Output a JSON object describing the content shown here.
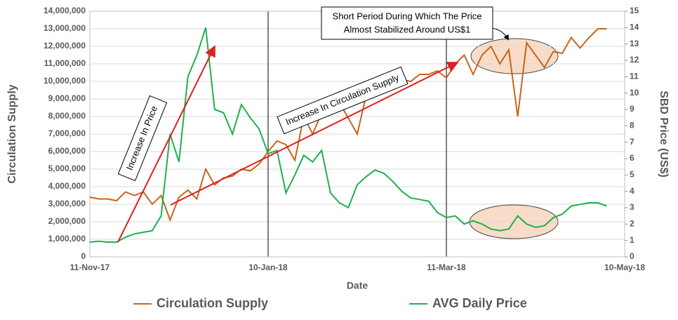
{
  "chart_data": {
    "type": "line",
    "x_label": "Date",
    "y_label": "Circulation Supply",
    "y2_label": "SBD Price (US$)",
    "annotation_top": [
      "Short Period During Which The Price",
      "Almost Stabilized Around US$1"
    ],
    "annotation_price": "Increase In Price",
    "annotation_supply": "Increase In Circulation Supply",
    "x": [
      "2017-11-11",
      "2017-11-14",
      "2017-11-17",
      "2017-11-20",
      "2017-11-23",
      "2017-11-26",
      "2017-11-29",
      "2017-12-02",
      "2017-12-05",
      "2017-12-08",
      "2017-12-11",
      "2017-12-14",
      "2017-12-17",
      "2017-12-20",
      "2017-12-23",
      "2017-12-26",
      "2017-12-29",
      "2018-01-01",
      "2018-01-04",
      "2018-01-07",
      "2018-01-10",
      "2018-01-13",
      "2018-01-16",
      "2018-01-19",
      "2018-01-22",
      "2018-01-25",
      "2018-01-28",
      "2018-01-31",
      "2018-02-03",
      "2018-02-06",
      "2018-02-09",
      "2018-02-12",
      "2018-02-15",
      "2018-02-18",
      "2018-02-21",
      "2018-02-24",
      "2018-02-27",
      "2018-03-02",
      "2018-03-05",
      "2018-03-08",
      "2018-03-11",
      "2018-03-14",
      "2018-03-17",
      "2018-03-20",
      "2018-03-23",
      "2018-03-26",
      "2018-03-29",
      "2018-04-01",
      "2018-04-04",
      "2018-04-07",
      "2018-04-10",
      "2018-04-13",
      "2018-04-16",
      "2018-04-19",
      "2018-04-22",
      "2018-04-25",
      "2018-04-28",
      "2018-05-01",
      "2018-05-04"
    ],
    "series": [
      {
        "name": "Circulation Supply",
        "color": "#c8651b",
        "axis": "y",
        "values": [
          3400000,
          3300000,
          3300000,
          3200000,
          3700000,
          3500000,
          3700000,
          3000000,
          3500000,
          2100000,
          3400000,
          3800000,
          3300000,
          5000000,
          4100000,
          4500000,
          4600000,
          5000000,
          4900000,
          5300000,
          6000000,
          6600000,
          6400000,
          5500000,
          8000000,
          7000000,
          8200000,
          8600000,
          8800000,
          7900000,
          7000000,
          9200000,
          9300000,
          9900000,
          9900000,
          10100000,
          10000000,
          10400000,
          10400000,
          10600000,
          10200000,
          11000000,
          11500000,
          10400000,
          11500000,
          12000000,
          11000000,
          11800000,
          8000000,
          12200000,
          11500000,
          10800000,
          11700000,
          11600000,
          12500000,
          11900000,
          12500000,
          13000000,
          13000000
        ]
      },
      {
        "name": "AVG Daily Price",
        "color": "#1fb04a",
        "axis": "y2",
        "values": [
          0.9,
          0.95,
          0.9,
          0.9,
          1.2,
          1.4,
          1.5,
          1.6,
          2.5,
          7.5,
          5.8,
          11.0,
          12.3,
          14.0,
          9.0,
          8.8,
          7.5,
          9.3,
          8.5,
          7.8,
          6.3,
          6.5,
          3.9,
          5.0,
          6.2,
          5.8,
          6.5,
          3.9,
          3.3,
          3.0,
          4.4,
          4.9,
          5.3,
          5.1,
          4.6,
          4.0,
          3.6,
          3.5,
          3.4,
          2.7,
          2.4,
          2.5,
          2.0,
          2.2,
          2.0,
          1.7,
          1.6,
          1.7,
          2.5,
          2.0,
          1.8,
          1.9,
          2.4,
          2.6,
          3.1,
          3.2,
          3.3,
          3.3,
          3.1
        ]
      }
    ],
    "xlim": [
      "2017-11-11",
      "2018-05-10"
    ],
    "xticks": [
      {
        "value": "2017-11-11",
        "label": "11-Nov-17"
      },
      {
        "value": "2018-01-10",
        "label": "10-Jan-18"
      },
      {
        "value": "2018-03-11",
        "label": "11-Mar-18"
      },
      {
        "value": "2018-05-10",
        "label": "10-May-18"
      }
    ],
    "ylim": [
      0,
      14000000
    ],
    "yticks": [
      0,
      {
        "value": 1000000,
        "label": "1,000,000"
      },
      {
        "value": 2000000,
        "label": "2,000,000"
      },
      {
        "value": 3000000,
        "label": "3,000,000"
      },
      {
        "value": 4000000,
        "label": "4,000,000"
      },
      {
        "value": 5000000,
        "label": "5,000,000"
      },
      {
        "value": 6000000,
        "label": "6,000,000"
      },
      {
        "value": 7000000,
        "label": "7,000,000"
      },
      {
        "value": 8000000,
        "label": "8,000,000"
      },
      {
        "value": 9000000,
        "label": "9,000,000"
      },
      {
        "value": 10000000,
        "label": "10,000,000"
      },
      {
        "value": 11000000,
        "label": "11,000,000"
      },
      {
        "value": 12000000,
        "label": "12,000,000"
      },
      {
        "value": 13000000,
        "label": "13,000,000"
      },
      {
        "value": 14000000,
        "label": "14,000,000"
      }
    ],
    "y2lim": [
      0,
      15
    ],
    "y2ticks": [
      0,
      1,
      2,
      3,
      4,
      5,
      6,
      7,
      8,
      9,
      10,
      11,
      12,
      13,
      14,
      15
    ],
    "grid": true,
    "legend": "bottom"
  }
}
